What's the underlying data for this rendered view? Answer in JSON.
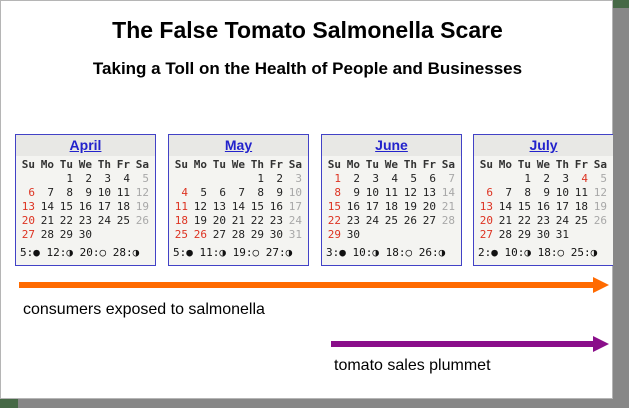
{
  "slide": {
    "title": "The False Tomato Salmonella Scare",
    "subtitle": "Taking a Toll on the Health of People and Businesses"
  },
  "calendars": {
    "day_headers": [
      "Su",
      "Mo",
      "Tu",
      "We",
      "Th",
      "Fr",
      "Sa"
    ],
    "months": [
      {
        "name": "April",
        "weeks": [
          [
            "",
            "",
            "1",
            "2",
            "3",
            "4",
            "5"
          ],
          [
            "6",
            "7",
            "8",
            "9",
            "10",
            "11",
            "12"
          ],
          [
            "13",
            "14",
            "15",
            "16",
            "17",
            "18",
            "19"
          ],
          [
            "20",
            "21",
            "22",
            "23",
            "24",
            "25",
            "26"
          ],
          [
            "27",
            "28",
            "29",
            "30",
            "",
            "",
            ""
          ]
        ],
        "extra_red_days": [],
        "moon_phases": [
          {
            "day": "5",
            "symbol": "●"
          },
          {
            "day": "12",
            "symbol": "◑"
          },
          {
            "day": "20",
            "symbol": "○"
          },
          {
            "day": "28",
            "symbol": "◑"
          }
        ]
      },
      {
        "name": "May",
        "weeks": [
          [
            "",
            "",
            "",
            "",
            "1",
            "2",
            "3"
          ],
          [
            "4",
            "5",
            "6",
            "7",
            "8",
            "9",
            "10"
          ],
          [
            "11",
            "12",
            "13",
            "14",
            "15",
            "16",
            "17"
          ],
          [
            "18",
            "19",
            "20",
            "21",
            "22",
            "23",
            "24"
          ],
          [
            "25",
            "26",
            "27",
            "28",
            "29",
            "30",
            "31"
          ]
        ],
        "extra_red_days": [
          "26"
        ],
        "moon_phases": [
          {
            "day": "5",
            "symbol": "●"
          },
          {
            "day": "11",
            "symbol": "◑"
          },
          {
            "day": "19",
            "symbol": "○"
          },
          {
            "day": "27",
            "symbol": "◑"
          }
        ]
      },
      {
        "name": "June",
        "weeks": [
          [
            "1",
            "2",
            "3",
            "4",
            "5",
            "6",
            "7"
          ],
          [
            "8",
            "9",
            "10",
            "11",
            "12",
            "13",
            "14"
          ],
          [
            "15",
            "16",
            "17",
            "18",
            "19",
            "20",
            "21"
          ],
          [
            "22",
            "23",
            "24",
            "25",
            "26",
            "27",
            "28"
          ],
          [
            "29",
            "30",
            "",
            "",
            "",
            "",
            ""
          ]
        ],
        "extra_red_days": [],
        "moon_phases": [
          {
            "day": "3",
            "symbol": "●"
          },
          {
            "day": "10",
            "symbol": "◑"
          },
          {
            "day": "18",
            "symbol": "○"
          },
          {
            "day": "26",
            "symbol": "◑"
          }
        ]
      },
      {
        "name": "July",
        "weeks": [
          [
            "",
            "",
            "1",
            "2",
            "3",
            "4",
            "5"
          ],
          [
            "6",
            "7",
            "8",
            "9",
            "10",
            "11",
            "12"
          ],
          [
            "13",
            "14",
            "15",
            "16",
            "17",
            "18",
            "19"
          ],
          [
            "20",
            "21",
            "22",
            "23",
            "24",
            "25",
            "26"
          ],
          [
            "27",
            "28",
            "29",
            "30",
            "31",
            "",
            ""
          ]
        ],
        "extra_red_days": [
          "4"
        ],
        "moon_phases": [
          {
            "day": "2",
            "symbol": "●"
          },
          {
            "day": "10",
            "symbol": "◑"
          },
          {
            "day": "18",
            "symbol": "○"
          },
          {
            "day": "25",
            "symbol": "◑"
          }
        ]
      }
    ],
    "colors": {
      "sunday_red": "#dd3322",
      "saturday_gray": "#a8a8a8",
      "border_blue": "#4242c6",
      "month_link_blue": "#2222cc"
    }
  },
  "annotations": {
    "exposure_arrow_label": "consumers exposed to salmonella",
    "sales_arrow_label": "tomato sales plummet",
    "exposure_arrow_color": "#ff6a00",
    "sales_arrow_color": "#8a0e8a"
  }
}
